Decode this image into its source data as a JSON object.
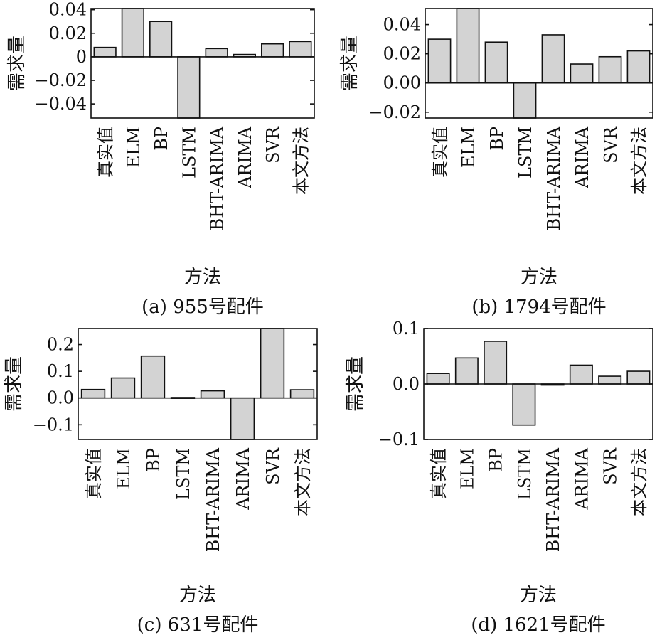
{
  "chart_data": [
    {
      "type": "bar",
      "caption": "(a) 955号配件",
      "xlabel": "方法",
      "ylabel": "需求量",
      "categories": [
        "真实值",
        "ELM",
        "BP",
        "LSTM",
        "BHT-ARIMA",
        "ARIMA",
        "SVR",
        "本文方法"
      ],
      "values": [
        0.008,
        0.041,
        0.03,
        -0.054,
        0.007,
        0.002,
        0.011,
        0.013
      ],
      "ylim": [
        -0.052,
        0.041
      ],
      "yticks": [
        0.04,
        0.02,
        0,
        -0.02,
        -0.04
      ],
      "ytick_labels": [
        "0.04",
        "0.02",
        "0",
        "−0.02",
        "−0.04"
      ],
      "grid": false
    },
    {
      "type": "bar",
      "caption": "(b) 1794号配件",
      "xlabel": "方法",
      "ylabel": "需求量",
      "categories": [
        "真实值",
        "ELM",
        "BP",
        "LSTM",
        "BHT-ARIMA",
        "ARIMA",
        "SVR",
        "本文方法"
      ],
      "values": [
        0.03,
        0.051,
        0.028,
        -0.026,
        0.033,
        0.013,
        0.018,
        0.022
      ],
      "ylim": [
        -0.024,
        0.051
      ],
      "yticks": [
        0.04,
        0.02,
        0.0,
        -0.02
      ],
      "ytick_labels": [
        "0.04",
        "0.02",
        "0.00",
        "−0.02"
      ],
      "grid": false
    },
    {
      "type": "bar",
      "caption": "(c) 631号配件",
      "xlabel": "方法",
      "ylabel": "需求量",
      "categories": [
        "真实值",
        "ELM",
        "BP",
        "LSTM",
        "BHT-ARIMA",
        "ARIMA",
        "SVR",
        "本文方法"
      ],
      "values": [
        0.032,
        0.075,
        0.157,
        0.002,
        0.027,
        -0.157,
        0.26,
        0.031
      ],
      "ylim": [
        -0.155,
        0.26
      ],
      "yticks": [
        0.2,
        0.1,
        0.0,
        -0.1
      ],
      "ytick_labels": [
        "0.2",
        "0.1",
        "0.0",
        "−0.1"
      ],
      "grid": false
    },
    {
      "type": "bar",
      "caption": "(d) 1621号配件",
      "xlabel": "方法",
      "ylabel": "需求量",
      "categories": [
        "真实值",
        "ELM",
        "BP",
        "LSTM",
        "BHT-ARIMA",
        "ARIMA",
        "SVR",
        "本文方法"
      ],
      "values": [
        0.019,
        0.047,
        0.077,
        -0.074,
        -0.002,
        0.034,
        0.014,
        0.023
      ],
      "ylim": [
        -0.1,
        0.1
      ],
      "yticks": [
        0.1,
        0.0,
        -0.1
      ],
      "ytick_labels": [
        "0.1",
        "0.0",
        "−0.1"
      ],
      "grid": false
    }
  ]
}
